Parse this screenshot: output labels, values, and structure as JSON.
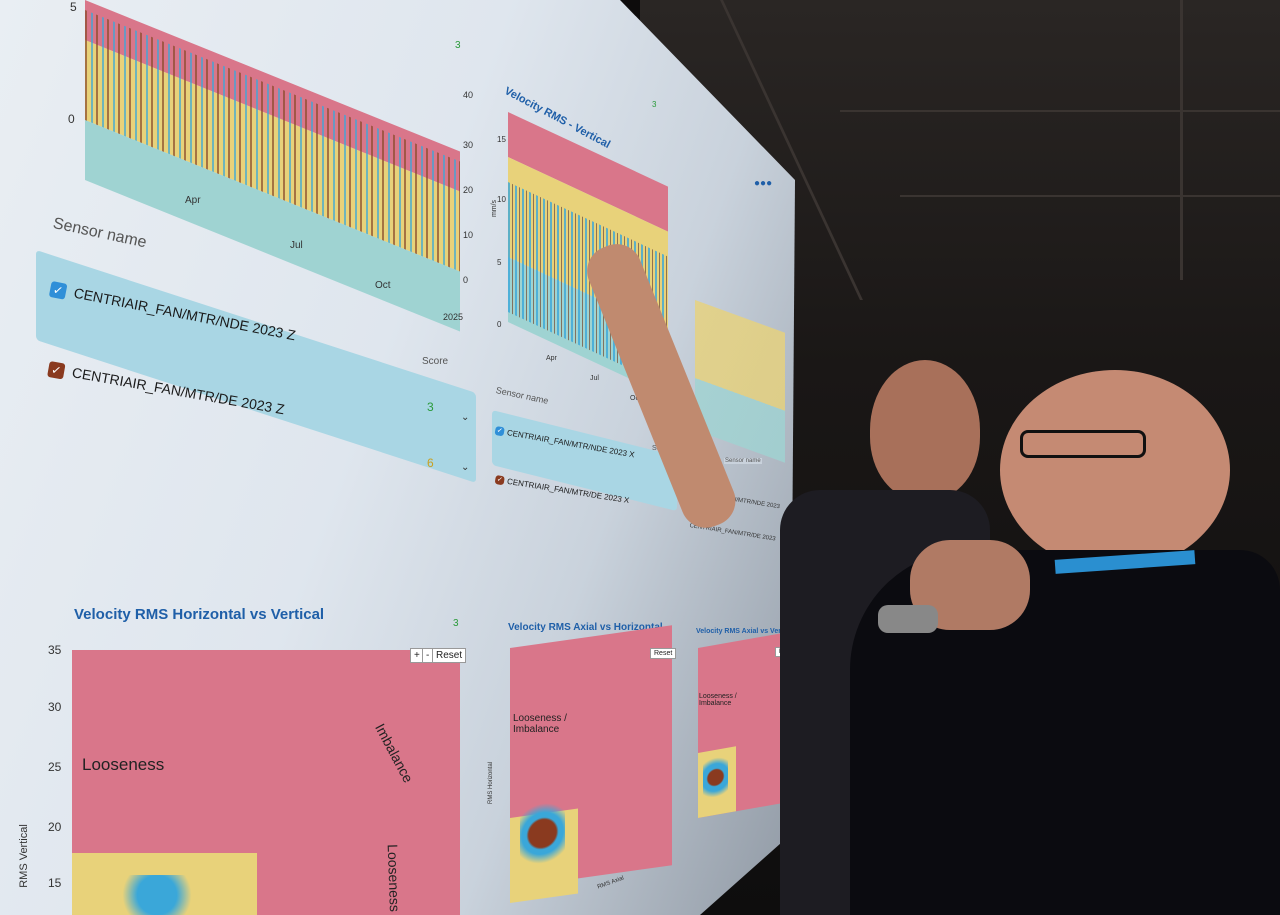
{
  "scene": {
    "description_colors": {
      "danger": "#d9768a",
      "warning": "#e8d27a",
      "ok": "#9fd3d2",
      "series_blue": "#3aa7d9",
      "series_brown": "#8a4a2a",
      "title_blue": "#1f5fa8"
    }
  },
  "top_left_chart": {
    "y_ticks": [
      "5",
      "0"
    ],
    "x_ticks": [
      "Apr",
      "Jul",
      "Oct",
      "2025"
    ],
    "right_ticks": [
      "40",
      "30",
      "20",
      "10",
      "0"
    ],
    "score_value": "3"
  },
  "left_sensor_table": {
    "header": "Sensor name",
    "score_header": "Score",
    "rows": [
      {
        "name": "CENTRIAIR_FAN/MTR/NDE 2023 Z",
        "checked": true,
        "color": "#2f8fd8",
        "score": "3"
      },
      {
        "name": "CENTRIAIR_FAN/MTR/DE 2023 Z",
        "checked": true,
        "color": "#8a3a1f",
        "score": "6"
      }
    ]
  },
  "vertical_chart": {
    "title": "Velocity RMS - Vertical",
    "y_label": "mm/s",
    "y_ticks": [
      "15",
      "10",
      "5",
      "0"
    ],
    "x_ticks": [
      "Apr",
      "Jul",
      "Oct"
    ],
    "score_value": "3"
  },
  "middle_sensor_table": {
    "header": "Sensor name",
    "score_header": "Score",
    "rows": [
      {
        "name": "CENTRIAIR_FAN/MTR/NDE 2023 X",
        "checked": true,
        "color": "#2f8fd8"
      },
      {
        "name": "CENTRIAIR_FAN/MTR/DE 2023 X",
        "checked": true,
        "color": "#8a3a1f"
      }
    ]
  },
  "right_sensor_table": {
    "header": "Sensor name",
    "rows": [
      {
        "name": "CENTRIAIR_FAN/MTR/NDE 2023"
      },
      {
        "name": "CENTRIAIR_FAN/MTR/DE 2023"
      }
    ]
  },
  "scatter_hv": {
    "title": "Velocity RMS Horizontal vs Vertical",
    "score_value": "3",
    "y_label": "RMS Vertical",
    "y_ticks": [
      "35",
      "30",
      "25",
      "20",
      "15"
    ],
    "zoom_in": "+",
    "zoom_out": "-",
    "reset": "Reset",
    "region_labels": [
      "Looseness",
      "Imbalance",
      "Looseness"
    ]
  },
  "scatter_ah": {
    "title": "Velocity RMS Axial vs Horizontal",
    "y_label": "RMS Horizontal",
    "x_label": "RMS Axial",
    "reset": "Reset",
    "region_label": "Looseness / Imbalance"
  },
  "scatter_av": {
    "title": "Velocity RMS Axial vs Vertical",
    "reset": "Reset",
    "region_label": "Looseness / Imbalance"
  }
}
